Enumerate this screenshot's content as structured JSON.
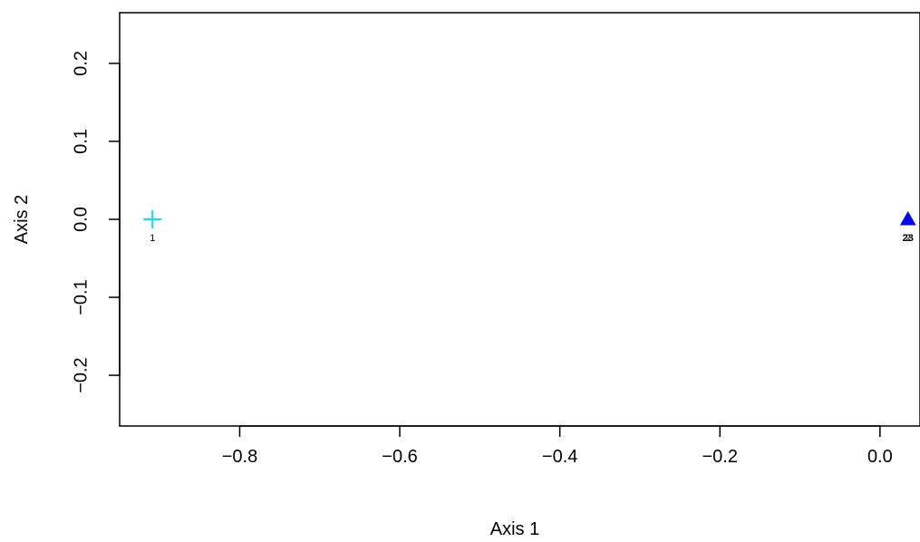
{
  "chart_data": {
    "type": "scatter",
    "title": "",
    "xlabel": "Axis 1",
    "ylabel": "Axis 2",
    "xlim": [
      -0.95,
      0.05
    ],
    "ylim": [
      -0.265,
      0.265
    ],
    "x_ticks": [
      -0.8,
      -0.6,
      -0.4,
      -0.2,
      0.0
    ],
    "x_tick_labels": [
      "−0.8",
      "−0.6",
      "−0.4",
      "−0.2",
      "0.0"
    ],
    "y_ticks": [
      -0.2,
      -0.1,
      0.0,
      0.1,
      0.2
    ],
    "y_tick_labels": [
      "−0.2",
      "−0.1",
      "0.0",
      "0.1",
      "0.2"
    ],
    "grid": false,
    "legend": "none",
    "series": [
      {
        "marker": "plus",
        "color": "#00e5ee",
        "points": [
          {
            "x": -0.909,
            "y": 0.0,
            "label": "1"
          }
        ]
      },
      {
        "marker": "triangle",
        "color": "#0000ff",
        "points": [
          {
            "x": 0.035,
            "y": 0.0,
            "label": "2"
          }
        ]
      },
      {
        "marker": "none",
        "color": "#000000",
        "points": [
          {
            "x": 0.035,
            "y": -0.023,
            "label": "23"
          }
        ]
      }
    ]
  }
}
